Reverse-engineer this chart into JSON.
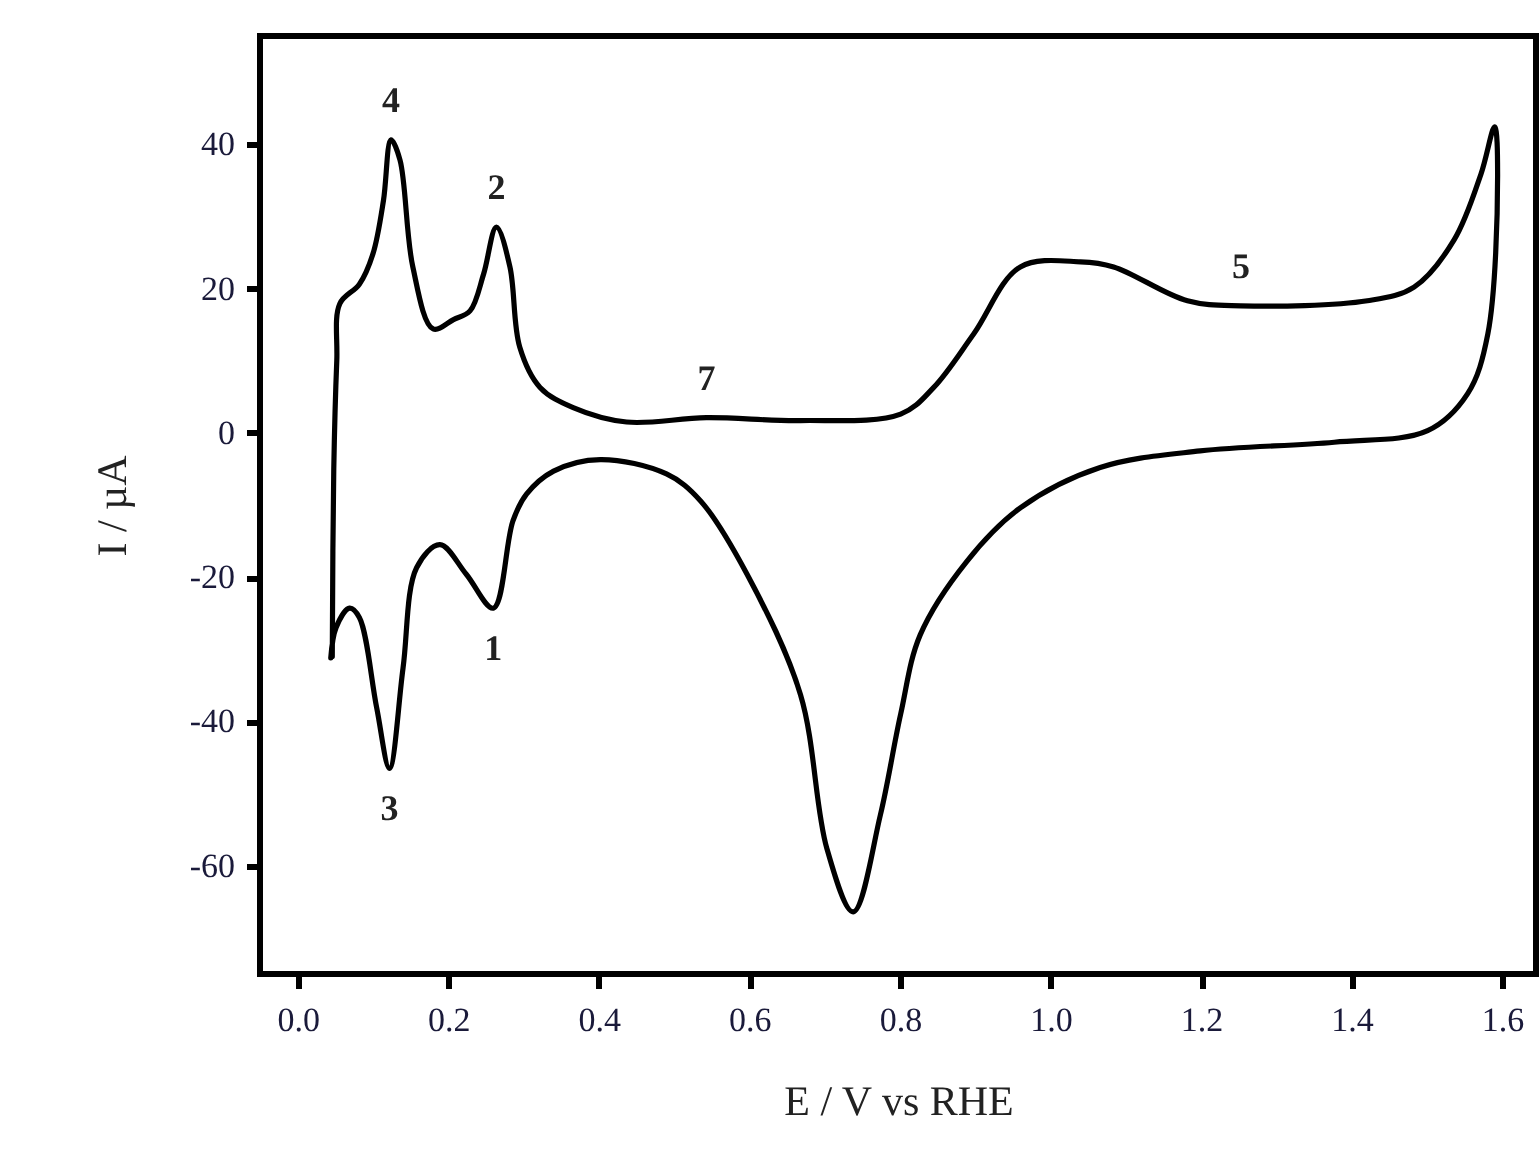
{
  "chart_data": {
    "type": "line",
    "xlabel": "E / V vs RHE",
    "ylabel": "I / µA",
    "xlim": [
      -0.05,
      1.645
    ],
    "ylim": [
      -75,
      55
    ],
    "xticks": [
      {
        "value": 0,
        "label": "0.0"
      },
      {
        "value": 0.2,
        "label": "0.2"
      },
      {
        "value": 0.4,
        "label": "0.4"
      },
      {
        "value": 0.6,
        "label": "0.6"
      },
      {
        "value": 0.8,
        "label": "0.8"
      },
      {
        "value": 1,
        "label": "1.0"
      },
      {
        "value": 1.2,
        "label": "1.2"
      },
      {
        "value": 1.4,
        "label": "1.4"
      },
      {
        "value": 1.6,
        "label": "1.6"
      }
    ],
    "yticks": [
      -60,
      -40,
      -20,
      0,
      20,
      40
    ],
    "grid": false,
    "series": [
      {
        "color": "#000000",
        "x": [
          0.046,
          0.048,
          0.052,
          0.056,
          0.082,
          0.1,
          0.114,
          0.124,
          0.136,
          0.153,
          0.18,
          0.207,
          0.229,
          0.247,
          0.264,
          0.282,
          0.295,
          0.322,
          0.366,
          0.437,
          0.543,
          0.668,
          0.801,
          0.845,
          0.898,
          0.96,
          1.04,
          1.084,
          1.182,
          1.253,
          1.421,
          1.483,
          1.536,
          1.572,
          1.59,
          1.594,
          1.581,
          1.554,
          1.501,
          1.377,
          1.199,
          1.066,
          0.96,
          0.889,
          0.827,
          0.801,
          0.774,
          0.738,
          0.703,
          0.668,
          0.597,
          0.535,
          0.49,
          0.402,
          0.34,
          0.304,
          0.286,
          0.26,
          0.224,
          0.189,
          0.158,
          0.14,
          0.122,
          0.105,
          0.082,
          0.069,
          0.051,
          0.044
        ],
        "values": [
          -31,
          -5,
          10,
          17.9,
          20.6,
          24.8,
          32.2,
          40.6,
          37.8,
          23,
          14.4,
          15.7,
          16.9,
          22,
          28.5,
          23,
          11.9,
          6.3,
          3.5,
          1.5,
          2.1,
          1.7,
          2.6,
          6.3,
          13.7,
          23,
          23.7,
          23,
          18.3,
          17.6,
          18.3,
          20.2,
          26.7,
          35.9,
          42.4,
          35.9,
          13.7,
          5.4,
          0.3,
          -1.3,
          -2.5,
          -4.8,
          -10.4,
          -17.8,
          -28,
          -39,
          -53,
          -66.4,
          -57.6,
          -36.3,
          -19.6,
          -9.4,
          -5.7,
          -3.7,
          -5.3,
          -8.5,
          -12.2,
          -24.3,
          -19.6,
          -15.5,
          -18.7,
          -32.6,
          -46.5,
          -38.1,
          -25.6,
          -24.3,
          -27,
          -31.2
        ]
      }
    ],
    "annotations": [
      {
        "text": "4",
        "x": 0.124,
        "y": 40.6
      },
      {
        "text": "2",
        "x": 0.264,
        "y": 28.5
      },
      {
        "text": "7",
        "x": 0.543,
        "y": 2.1
      },
      {
        "text": "5",
        "x": 1.253,
        "y": 17.6
      },
      {
        "text": "1",
        "x": 0.26,
        "y": -24.3
      },
      {
        "text": "3",
        "x": 0.122,
        "y": -46.5
      }
    ]
  }
}
